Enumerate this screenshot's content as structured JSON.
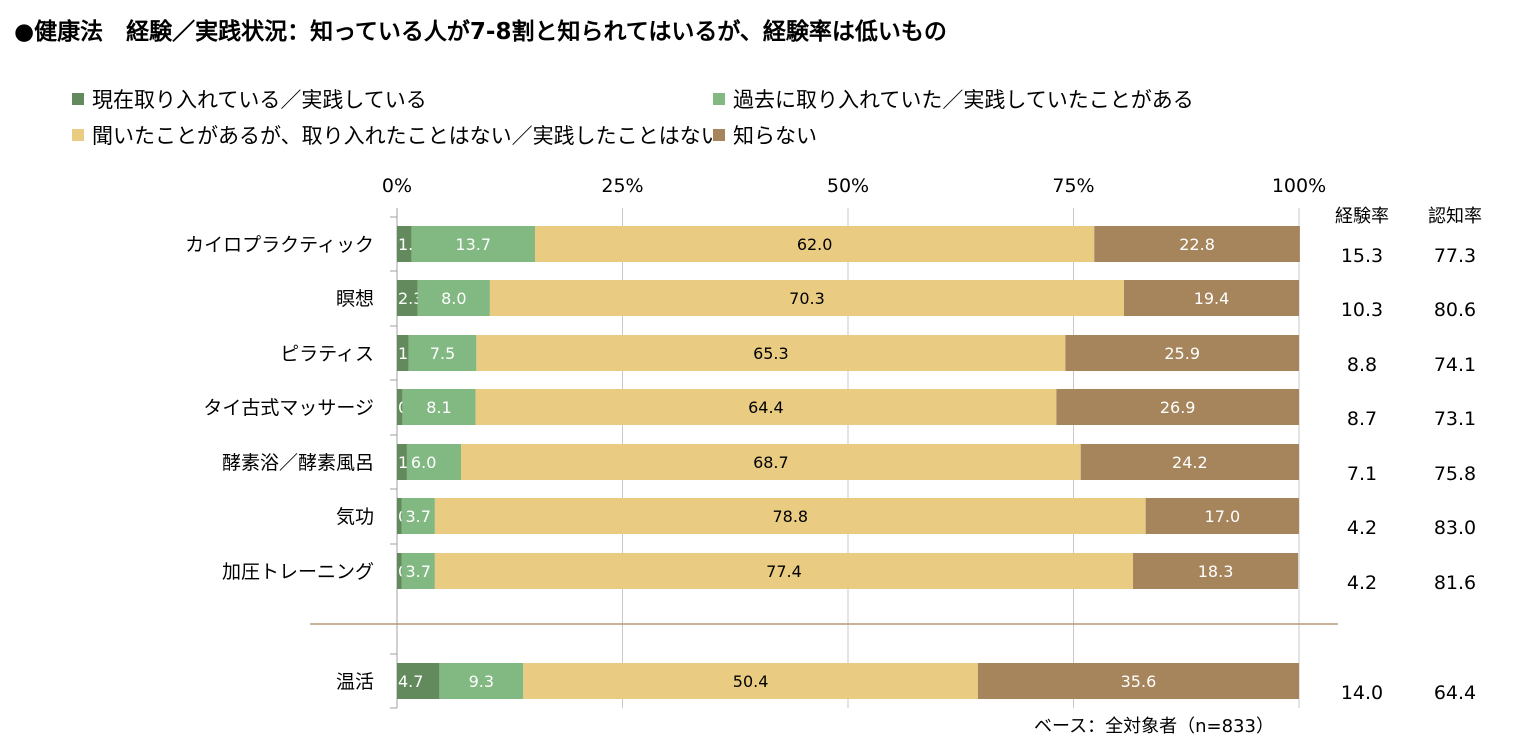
{
  "title": "●健康法　経験／実践状況：知っている人が7-8割と知られてはいるが、経験率は低いもの",
  "note": "ベース：全対象者（n=833）",
  "colors": {
    "current": "#628a5c",
    "past": "#82b881",
    "heard": "#e9cc82",
    "unknown": "#a6855d",
    "grid": "#c8c8c8",
    "axis": "#a0a0a0",
    "separator": "#b59a74"
  },
  "chart_data": {
    "type": "bar",
    "orientation": "horizontal",
    "stacked": "100%",
    "xlim": [
      0,
      100
    ],
    "x_ticks": [
      "0%",
      "25%",
      "50%",
      "75%",
      "100%"
    ],
    "categories": [
      "カイロプラクティック",
      "瞑想",
      "ピラティス",
      "タイ古式マッサージ",
      "酵素浴／酵素風呂",
      "気功",
      "加圧トレーニング",
      "温活"
    ],
    "series": [
      {
        "name": "現在取り入れている／実践している",
        "color_key": "current",
        "label_color": "#ffffff",
        "values": [
          1.6,
          2.3,
          1.3,
          0.6,
          1.1,
          0.5,
          0.5,
          4.7
        ]
      },
      {
        "name": "過去に取り入れていた／実践していたことがある",
        "color_key": "past",
        "label_color": "#ffffff",
        "values": [
          13.7,
          8.0,
          7.5,
          8.1,
          6.0,
          3.7,
          3.7,
          9.3
        ]
      },
      {
        "name": "聞いたことがあるが、取り入れたことはない／実践したことはない",
        "color_key": "heard",
        "label_color": "#000000",
        "values": [
          62.0,
          70.3,
          65.3,
          64.4,
          68.7,
          78.8,
          77.4,
          50.4
        ]
      },
      {
        "name": "知らない",
        "color_key": "unknown",
        "label_color": "#ffffff",
        "values": [
          22.8,
          19.4,
          25.9,
          26.9,
          24.2,
          17.0,
          18.3,
          35.6
        ]
      }
    ],
    "extra_columns": [
      {
        "header": "経験率",
        "values": [
          "15.3",
          "10.3",
          "8.8",
          "8.7",
          "7.1",
          "4.2",
          "4.2",
          "14.0"
        ]
      },
      {
        "header": "認知率",
        "values": [
          "77.3",
          "80.6",
          "74.1",
          "73.1",
          "75.8",
          "83.0",
          "81.6",
          "64.4"
        ]
      }
    ],
    "separator_after_index": 6,
    "legend_position": "top",
    "grid": true
  }
}
